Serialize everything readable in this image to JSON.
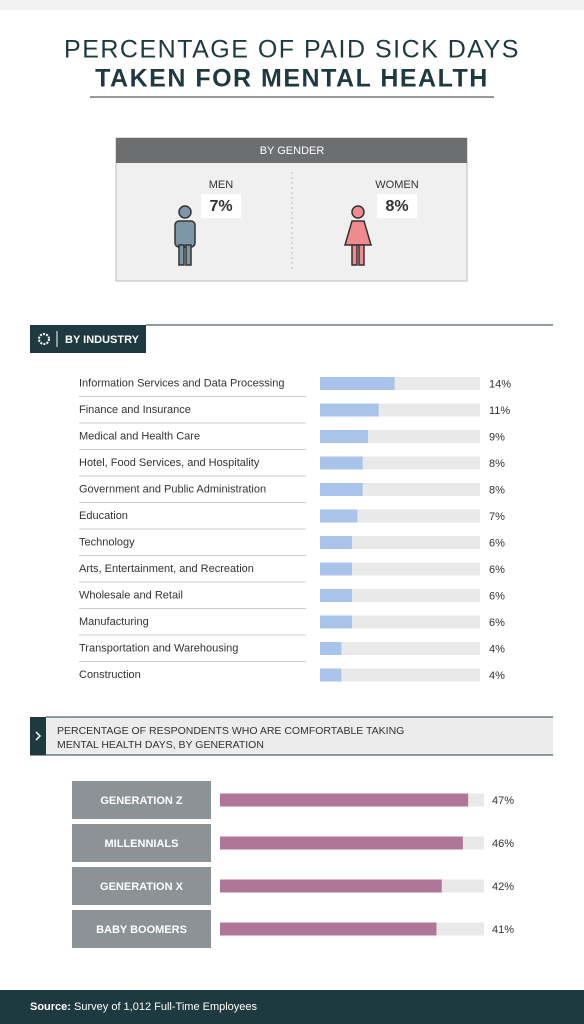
{
  "title": [
    "PERCENTAGE OF PAID SICK DAYS",
    "TAKEN FOR MENTAL HEALTH"
  ],
  "gender": {
    "heading": "BY GENDER",
    "groups": [
      {
        "name": "MEN",
        "value": 7,
        "value_label": "7%",
        "color": "#7d97a8"
      },
      {
        "name": "WOMEN",
        "value": 8,
        "value_label": "8%",
        "color": "#f08a8e"
      }
    ]
  },
  "chart_data": [
    {
      "type": "hbar",
      "title": "BY INDUSTRY",
      "categories": [
        "Information Services and Data Processing",
        "Finance and Insurance",
        "Medical and Health Care",
        "Hotel, Food Services, and Hospitality",
        "Government and Public Administration",
        "Education",
        "Technology",
        "Arts, Entertainment, and Recreation",
        "Wholesale and Retail",
        "Manufacturing",
        "Transportation and Warehousing",
        "Construction"
      ],
      "values": [
        14,
        11,
        9,
        8,
        8,
        7,
        6,
        6,
        6,
        6,
        4,
        4
      ],
      "value_labels": [
        "14%",
        "11%",
        "9%",
        "8%",
        "8%",
        "7%",
        "6%",
        "6%",
        "6%",
        "6%",
        "4%",
        "4%"
      ],
      "color": "#a9c3eb",
      "xlim": [
        0,
        30
      ]
    },
    {
      "type": "hbar",
      "title": [
        "PERCENTAGE OF RESPONDENTS WHO ARE COMFORTABLE TAKING",
        "MENTAL HEALTH DAYS, BY GENERATION"
      ],
      "categories": [
        "GENERATION Z",
        "MILLENNIALS",
        "GENERATION X",
        "BABY BOOMERS"
      ],
      "values": [
        47,
        46,
        42,
        41
      ],
      "value_labels": [
        "47%",
        "46%",
        "42%",
        "41%"
      ],
      "color": "#b07697",
      "xlim": [
        0,
        50
      ]
    }
  ],
  "source": {
    "label": "Source:",
    "text": "Survey of 1,012 Full-Time Employees"
  }
}
